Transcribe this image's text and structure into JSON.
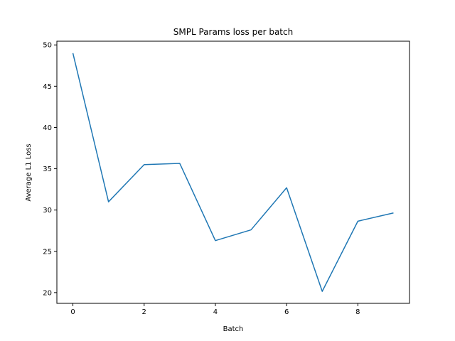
{
  "chart_data": {
    "type": "line",
    "title": "SMPL Params loss per batch",
    "xlabel": "Batch",
    "ylabel": "Average L1 Loss",
    "x": [
      0,
      1,
      2,
      3,
      4,
      5,
      6,
      7,
      8,
      9
    ],
    "series": [
      {
        "values": [
          49.0,
          31.0,
          35.5,
          35.65,
          26.3,
          27.6,
          32.7,
          20.15,
          28.65,
          29.65
        ]
      }
    ],
    "xlim": [
      -0.45,
      9.45
    ],
    "ylim": [
      18.7,
      50.45
    ],
    "xticks": [
      0,
      2,
      4,
      6,
      8
    ],
    "yticks": [
      20,
      25,
      30,
      35,
      40,
      45,
      50
    ],
    "grid": false,
    "colors": {
      "line": "#1f77b4"
    }
  }
}
